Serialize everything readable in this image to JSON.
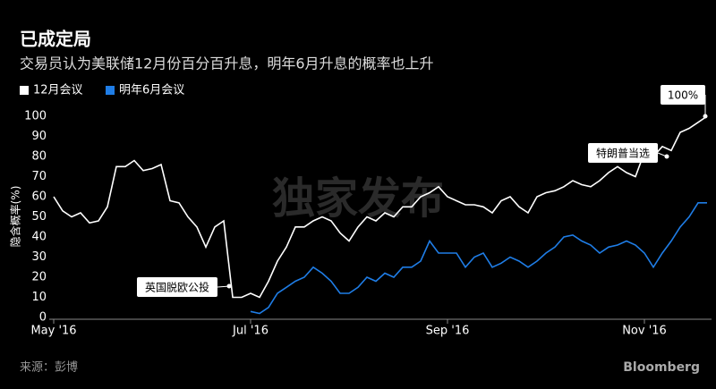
{
  "chart_data": {
    "type": "line",
    "title": "已成定局",
    "subtitle": "交易员认为美联储12月份百分百升息，明年6月升息的概率也上升",
    "ylabel": "隐含概率(%)",
    "source": "来源：彭博",
    "brand": "Bloomberg",
    "watermark": "独家发布",
    "annotations": [
      "100%",
      "特朗普当选",
      "英国脱欧公投"
    ],
    "categories": [
      "May '16",
      null,
      null,
      null,
      null,
      null,
      null,
      null,
      null,
      null,
      null,
      null,
      null,
      null,
      null,
      null,
      null,
      null,
      null,
      null,
      null,
      null,
      "Jul '16",
      null,
      null,
      null,
      null,
      null,
      null,
      null,
      null,
      null,
      null,
      null,
      null,
      null,
      null,
      null,
      null,
      null,
      null,
      null,
      null,
      null,
      "Sep '16",
      null,
      null,
      null,
      null,
      null,
      null,
      null,
      null,
      null,
      null,
      null,
      null,
      null,
      null,
      null,
      null,
      null,
      null,
      null,
      null,
      null,
      "Nov '16",
      null,
      null,
      null,
      null,
      null,
      null,
      null
    ],
    "series": [
      {
        "name": "12月会议",
        "color": "#ffffff",
        "values": [
          60,
          53,
          50,
          52,
          47,
          48,
          55,
          75,
          75,
          78,
          73,
          74,
          76,
          58,
          57,
          50,
          45,
          35,
          45,
          48,
          10,
          10,
          12,
          10,
          18,
          28,
          35,
          45,
          45,
          48,
          50,
          48,
          42,
          38,
          45,
          50,
          48,
          52,
          50,
          55,
          55,
          60,
          62,
          65,
          60,
          58,
          56,
          56,
          55,
          52,
          58,
          60,
          55,
          52,
          60,
          62,
          63,
          65,
          68,
          66,
          65,
          68,
          72,
          75,
          72,
          70,
          82,
          80,
          85,
          83,
          92,
          94,
          97,
          100
        ]
      },
      {
        "name": "明年6月会议",
        "color": "#1f7de6",
        "values": [
          null,
          null,
          null,
          null,
          null,
          null,
          null,
          null,
          null,
          null,
          null,
          null,
          null,
          null,
          null,
          null,
          null,
          null,
          null,
          null,
          null,
          null,
          3,
          2,
          5,
          12,
          15,
          18,
          20,
          25,
          22,
          18,
          12,
          12,
          15,
          20,
          18,
          22,
          20,
          25,
          25,
          28,
          38,
          32,
          32,
          32,
          25,
          30,
          32,
          25,
          27,
          30,
          28,
          25,
          28,
          32,
          35,
          40,
          41,
          38,
          36,
          32,
          35,
          36,
          38,
          36,
          32,
          25,
          32,
          38,
          45,
          50,
          57,
          57
        ]
      }
    ],
    "ylim": [
      0,
      100
    ],
    "yticks": [
      0,
      10,
      20,
      30,
      40,
      50,
      60,
      70,
      80,
      90,
      100
    ],
    "legend": "top-left",
    "grid": false
  }
}
